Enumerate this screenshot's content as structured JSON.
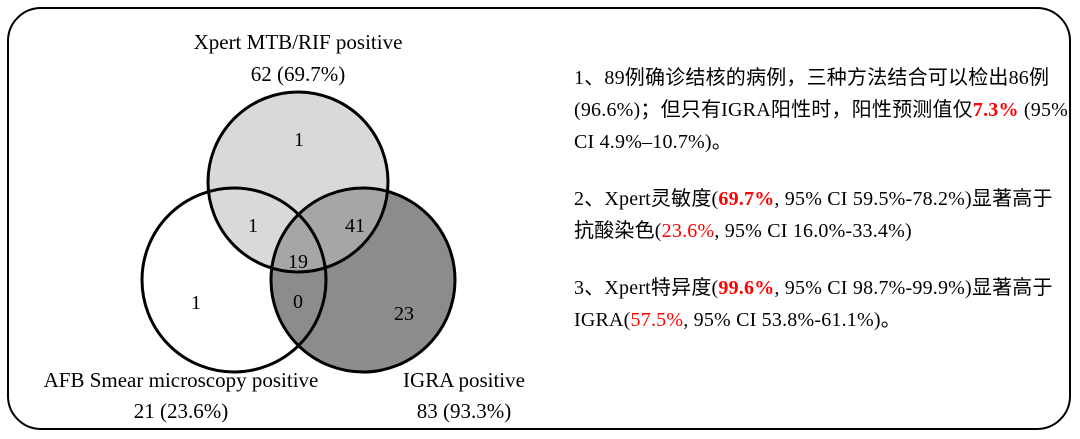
{
  "venn": {
    "sets": [
      {
        "name": "Xpert MTB/RIF positive",
        "count": "62 (69.7%)",
        "fill": "#d9d9d9"
      },
      {
        "name": "AFB Smear microscopy positive",
        "count": "21 (23.6%)",
        "fill": "#ffffff"
      },
      {
        "name": "IGRA positive",
        "count": "83 (93.3%)",
        "fill": "#8c8c8c"
      }
    ],
    "regions": {
      "xpert_only": "1",
      "xpert_afb": "1",
      "xpert_igra": "41",
      "all_three": "19",
      "afb_only": "1",
      "afb_igra": "0",
      "igra_only": "23"
    },
    "colors": {
      "xpert_only": "#d9d9d9",
      "xpert_afb": "#d9d9d9",
      "xpert_igra": "#a6a6a6",
      "all_three": "#a6a6a6",
      "igra_only": "#8c8c8c",
      "afb_igra": "#8c8c8c",
      "afb_only": "#ffffff"
    }
  },
  "notes": [
    {
      "runs": [
        {
          "text": "1、89例确诊结核的病例，三种方法结合可以检出86例(96.6%)；但只有IGRA阳性时，阳性预测值仅",
          "style": "normal"
        },
        {
          "text": "7.3%",
          "style": "red-bold"
        },
        {
          "text": " (95% CI 4.9%–10.7%)。",
          "style": "normal"
        }
      ]
    },
    {
      "runs": [
        {
          "text": "2、Xpert灵敏度(",
          "style": "normal"
        },
        {
          "text": "69.7%",
          "style": "red-bold"
        },
        {
          "text": ", 95% CI 59.5%-78.2%)显著高于抗酸染色(",
          "style": "normal"
        },
        {
          "text": "23.6%",
          "style": "red"
        },
        {
          "text": ", 95% CI 16.0%-33.4%)",
          "style": "normal"
        }
      ]
    },
    {
      "runs": [
        {
          "text": "3、Xpert特异度(",
          "style": "normal"
        },
        {
          "text": "99.6%",
          "style": "red-bold"
        },
        {
          "text": ", 95% CI 98.7%-99.9%)显著高于IGRA(",
          "style": "normal"
        },
        {
          "text": "57.5%",
          "style": "red"
        },
        {
          "text": ", 95% CI 53.8%-61.1%)。",
          "style": "normal"
        }
      ]
    }
  ]
}
